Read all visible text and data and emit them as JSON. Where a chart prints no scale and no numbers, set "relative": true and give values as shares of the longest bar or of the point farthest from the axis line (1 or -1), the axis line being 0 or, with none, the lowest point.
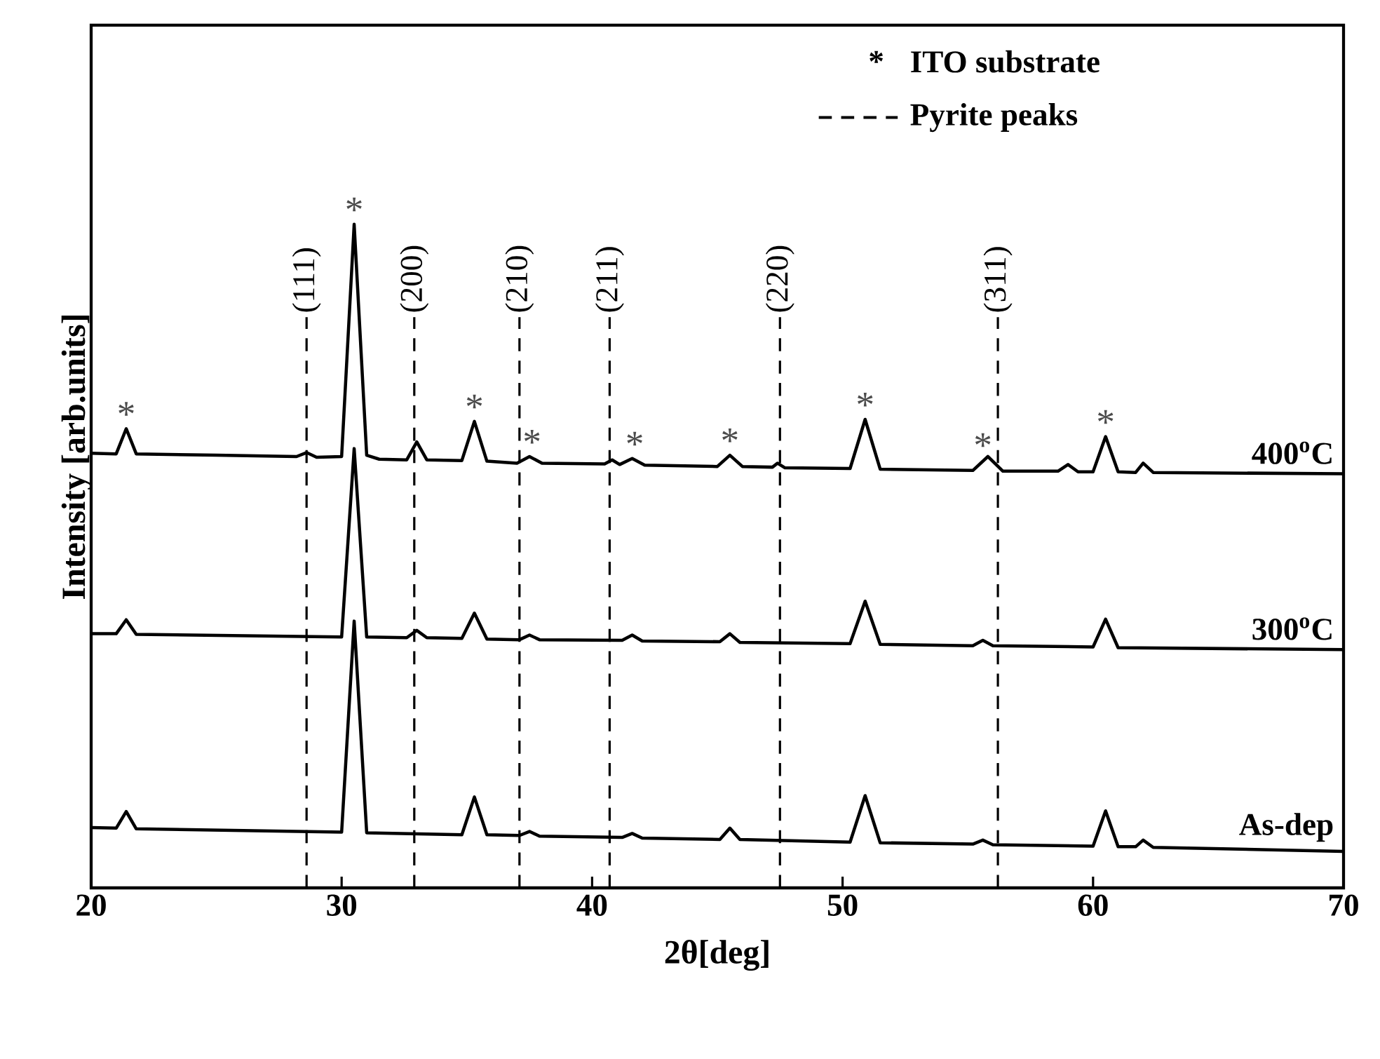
{
  "chart_data": {
    "type": "line",
    "relative": true,
    "xlabel": "2θ[deg]",
    "ylabel": "Intensity [arb.units]",
    "xlim": [
      20,
      70
    ],
    "xticks": [
      20,
      30,
      40,
      50,
      60,
      70
    ],
    "line_style": "solid",
    "series": [
      {
        "name": "400$^{o}$C",
        "color": "#000000",
        "x": [
          20,
          21.0,
          21.4,
          21.8,
          25,
          28.2,
          28.6,
          29.0,
          30.0,
          30.5,
          31.0,
          31.5,
          32.6,
          33.0,
          33.4,
          34.8,
          35.3,
          35.8,
          37.0,
          37.5,
          38.0,
          40.5,
          40.8,
          41.1,
          41.6,
          42.1,
          45.0,
          45.5,
          46.0,
          47.2,
          47.4,
          47.7,
          50.3,
          50.9,
          51.5,
          55.2,
          55.8,
          56.4,
          58.6,
          59.0,
          59.4,
          60.0,
          60.5,
          61.0,
          61.7,
          62.0,
          62.4,
          70
        ],
        "values": [
          0.655,
          0.654,
          0.692,
          0.654,
          0.652,
          0.65,
          0.656,
          0.649,
          0.65,
          1.0,
          0.652,
          0.646,
          0.645,
          0.672,
          0.645,
          0.644,
          0.703,
          0.643,
          0.64,
          0.65,
          0.64,
          0.639,
          0.645,
          0.638,
          0.647,
          0.637,
          0.635,
          0.652,
          0.635,
          0.634,
          0.64,
          0.633,
          0.632,
          0.706,
          0.631,
          0.629,
          0.65,
          0.628,
          0.628,
          0.638,
          0.627,
          0.627,
          0.68,
          0.627,
          0.626,
          0.64,
          0.626,
          0.624
        ]
      },
      {
        "name": "300$^{o}$C",
        "color": "#000000",
        "x": [
          20,
          21.0,
          21.4,
          21.8,
          30.0,
          30.5,
          31.0,
          32.6,
          33.0,
          33.4,
          34.8,
          35.3,
          35.8,
          37.1,
          37.5,
          37.9,
          41.2,
          41.6,
          42.0,
          45.1,
          45.5,
          45.9,
          50.3,
          50.9,
          51.5,
          55.2,
          55.6,
          56.0,
          60.0,
          60.5,
          61.0,
          70
        ],
        "values": [
          0.383,
          0.383,
          0.404,
          0.382,
          0.378,
          0.662,
          0.378,
          0.377,
          0.388,
          0.377,
          0.376,
          0.414,
          0.375,
          0.374,
          0.381,
          0.374,
          0.373,
          0.381,
          0.372,
          0.371,
          0.383,
          0.37,
          0.368,
          0.432,
          0.367,
          0.365,
          0.373,
          0.365,
          0.363,
          0.405,
          0.362,
          0.359
        ]
      },
      {
        "name": "As-dep",
        "color": "#000000",
        "x": [
          20,
          21.0,
          21.4,
          21.8,
          30.0,
          30.5,
          31.0,
          34.8,
          35.3,
          35.8,
          37.1,
          37.5,
          37.9,
          41.2,
          41.6,
          42.0,
          45.1,
          45.5,
          45.9,
          50.3,
          50.9,
          51.5,
          55.2,
          55.6,
          56.0,
          60.0,
          60.5,
          61.0,
          61.7,
          62.0,
          62.4,
          70
        ],
        "values": [
          0.091,
          0.09,
          0.115,
          0.089,
          0.084,
          0.402,
          0.083,
          0.08,
          0.137,
          0.08,
          0.079,
          0.085,
          0.078,
          0.076,
          0.082,
          0.075,
          0.073,
          0.09,
          0.073,
          0.069,
          0.139,
          0.068,
          0.066,
          0.072,
          0.065,
          0.063,
          0.116,
          0.062,
          0.062,
          0.072,
          0.061,
          0.055
        ]
      }
    ],
    "ref_lines": [
      {
        "axis": "x",
        "value": 28.6,
        "color": "#000000",
        "line_style": "dashed"
      },
      {
        "axis": "x",
        "value": 32.9,
        "color": "#000000",
        "line_style": "dashed"
      },
      {
        "axis": "x",
        "value": 37.1,
        "color": "#000000",
        "line_style": "dashed"
      },
      {
        "axis": "x",
        "value": 40.7,
        "color": "#000000",
        "line_style": "dashed"
      },
      {
        "axis": "x",
        "value": 47.5,
        "color": "#000000",
        "line_style": "dashed"
      },
      {
        "axis": "x",
        "value": 56.2,
        "color": "#000000",
        "line_style": "dashed"
      }
    ],
    "annotations": [
      "*",
      "ITO substrate",
      "Pyrite peaks",
      {
        "text": "*",
        "x": 21.4,
        "y": 0.692
      },
      {
        "text": "*",
        "x": 30.5,
        "y": 1.0
      },
      {
        "text": "*",
        "x": 35.3,
        "y": 0.703
      },
      {
        "text": "*",
        "x": 37.6,
        "y": 0.65
      },
      {
        "text": "*",
        "x": 41.7,
        "y": 0.647
      },
      {
        "text": "*",
        "x": 45.5,
        "y": 0.652
      },
      {
        "text": "*",
        "x": 50.9,
        "y": 0.706
      },
      {
        "text": "*",
        "x": 55.6,
        "y": 0.645
      },
      {
        "text": "*",
        "x": 60.5,
        "y": 0.68
      },
      {
        "text": "(111)",
        "x": 28.6,
        "y": 0.86
      },
      {
        "text": "(200)",
        "x": 32.9,
        "y": 0.86
      },
      {
        "text": "(210)",
        "x": 37.1,
        "y": 0.86
      },
      {
        "text": "(211)",
        "x": 40.7,
        "y": 0.86
      },
      {
        "text": "(220)",
        "x": 47.5,
        "y": 0.86
      },
      {
        "text": "(311)",
        "x": 56.2,
        "y": 0.86
      }
    ]
  }
}
